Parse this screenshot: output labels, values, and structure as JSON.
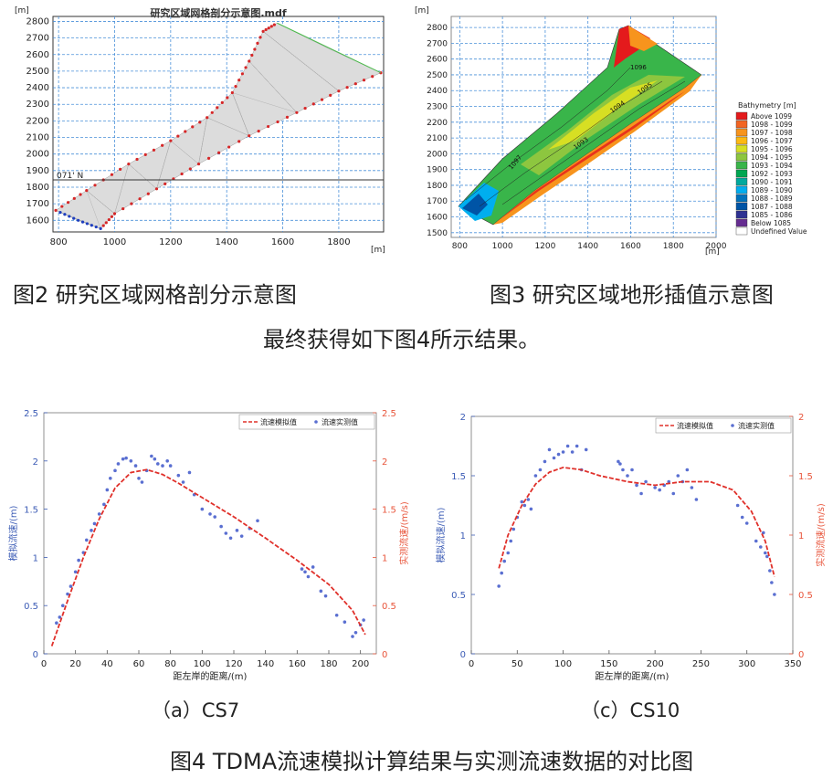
{
  "fig2": {
    "title": "研究区域网格剖分示意图.mdf",
    "x_unit": "[m]",
    "y_unit": "[m]",
    "x_ticks": [
      "800",
      "1000",
      "1200",
      "1400",
      "1600",
      "1800"
    ],
    "y_ticks": [
      "1600",
      "1700",
      "1800",
      "1900",
      "2000",
      "2100",
      "2200",
      "2300",
      "2400",
      "2500",
      "2600",
      "2700",
      "2800"
    ],
    "lat_label": "071' N",
    "caption": "图2 研究区域网格剖分示意图"
  },
  "fig3": {
    "x_unit": "[m]",
    "y_unit": "[m]",
    "x_ticks": [
      "800",
      "1000",
      "1200",
      "1400",
      "1600",
      "1800",
      "2000"
    ],
    "y_ticks": [
      "1500",
      "1600",
      "1700",
      "1800",
      "1900",
      "2000",
      "2100",
      "2200",
      "2300",
      "2400",
      "2500",
      "2600",
      "2700",
      "2800"
    ],
    "legend_title": "Bathymetry [m]",
    "legend": [
      {
        "label": "Above 1099",
        "color": "#e41a1c"
      },
      {
        "label": "1098 - 1099",
        "color": "#f26522"
      },
      {
        "label": "1097 - 1098",
        "color": "#f7941d"
      },
      {
        "label": "1096 - 1097",
        "color": "#fdb913"
      },
      {
        "label": "1095 - 1096",
        "color": "#d7df23"
      },
      {
        "label": "1094 - 1095",
        "color": "#8dc63f"
      },
      {
        "label": "1093 - 1094",
        "color": "#39b54a"
      },
      {
        "label": "1092 - 1093",
        "color": "#00a651"
      },
      {
        "label": "1090 - 1091",
        "color": "#00a99d"
      },
      {
        "label": "1089 - 1090",
        "color": "#00aeef"
      },
      {
        "label": "1088 - 1089",
        "color": "#0072bc"
      },
      {
        "label": "1087 - 1088",
        "color": "#0054a6"
      },
      {
        "label": "1085 - 1086",
        "color": "#2e3192"
      },
      {
        "label": "Below 1085",
        "color": "#662d91"
      },
      {
        "label": "Undefined Value",
        "color": "#ffffff"
      }
    ],
    "contour_labels": [
      "1096",
      "1095",
      "1094",
      "1093",
      "1097"
    ],
    "caption": "图3 研究区域地形插值示意图"
  },
  "mid_text": "最终获得如下图4所示结果。",
  "chart_data": [
    {
      "type": "line",
      "name": "cs7",
      "subcaption": "（a）CS7",
      "xlabel": "距左岸的距离/(m)",
      "ylabel_left": "模拟流速/(m)",
      "ylabel_right": "实测流速/(m/s)",
      "legend": [
        "流速模拟值",
        "流速实测值"
      ],
      "xlim": [
        0,
        210
      ],
      "ylim": [
        0,
        2.5
      ],
      "x_ticks": [
        "0",
        "20",
        "40",
        "60",
        "80",
        "100",
        "120",
        "140",
        "160",
        "180",
        "200"
      ],
      "y_ticks": [
        "0",
        "0.5",
        "1",
        "1.5",
        "2",
        "2.5"
      ],
      "sim_line": {
        "x": [
          5,
          15,
          25,
          35,
          45,
          55,
          65,
          75,
          85,
          100,
          120,
          140,
          160,
          180,
          195,
          203
        ],
        "y": [
          0.08,
          0.55,
          1.0,
          1.4,
          1.72,
          1.88,
          1.91,
          1.86,
          1.77,
          1.62,
          1.42,
          1.2,
          0.97,
          0.72,
          0.45,
          0.2
        ]
      },
      "measured": {
        "x": [
          8,
          10,
          12,
          15,
          17,
          20,
          22,
          25,
          27,
          30,
          32,
          35,
          38,
          40,
          42,
          45,
          47,
          50,
          52,
          55,
          58,
          60,
          62,
          65,
          68,
          70,
          72,
          75,
          78,
          80,
          85,
          88,
          92,
          95,
          100,
          105,
          108,
          112,
          115,
          118,
          122,
          125,
          130,
          135,
          163,
          165,
          167,
          170,
          175,
          178,
          185,
          190,
          195,
          197,
          200,
          202
        ],
        "y": [
          0.32,
          0.38,
          0.5,
          0.62,
          0.7,
          0.85,
          0.97,
          1.05,
          1.18,
          1.28,
          1.35,
          1.45,
          1.55,
          1.7,
          1.82,
          1.9,
          1.97,
          2.02,
          2.03,
          2.0,
          1.95,
          1.82,
          1.78,
          1.9,
          2.05,
          2.02,
          1.97,
          1.95,
          2.0,
          1.95,
          1.85,
          1.78,
          1.88,
          1.65,
          1.5,
          1.45,
          1.42,
          1.32,
          1.25,
          1.2,
          1.28,
          1.22,
          1.3,
          1.38,
          0.88,
          0.85,
          0.8,
          0.9,
          0.65,
          0.6,
          0.4,
          0.33,
          0.18,
          0.22,
          0.3,
          0.35
        ]
      }
    },
    {
      "type": "line",
      "name": "cs10",
      "subcaption": "（c）CS10",
      "xlabel": "距左岸的距离/(m)",
      "ylabel_left": "模拟流速/(m)",
      "ylabel_right": "实测流速/(m/s)",
      "legend": [
        "流速模拟值",
        "流速实测值"
      ],
      "xlim": [
        0,
        350
      ],
      "ylim": [
        0,
        2
      ],
      "x_ticks": [
        "0",
        "50",
        "100",
        "150",
        "200",
        "250",
        "300",
        "350"
      ],
      "y_ticks": [
        "0",
        "0.5",
        "1",
        "1.5",
        "2"
      ],
      "sim_line": {
        "x": [
          30,
          40,
          55,
          70,
          85,
          100,
          120,
          140,
          170,
          200,
          230,
          260,
          285,
          305,
          320,
          330
        ],
        "y": [
          0.72,
          1.0,
          1.25,
          1.43,
          1.53,
          1.57,
          1.55,
          1.5,
          1.45,
          1.42,
          1.45,
          1.45,
          1.38,
          1.2,
          0.95,
          0.65
        ]
      },
      "measured": {
        "x": [
          30,
          33,
          36,
          40,
          43,
          46,
          50,
          55,
          58,
          62,
          65,
          70,
          75,
          80,
          85,
          90,
          95,
          100,
          105,
          110,
          115,
          120,
          125,
          160,
          162,
          165,
          170,
          175,
          180,
          185,
          190,
          200,
          205,
          210,
          215,
          220,
          225,
          230,
          235,
          240,
          245,
          290,
          295,
          300,
          310,
          315,
          318,
          320,
          322,
          325,
          327,
          330
        ],
        "y": [
          0.57,
          0.68,
          0.78,
          0.85,
          0.95,
          1.05,
          1.15,
          1.28,
          1.25,
          1.3,
          1.22,
          1.5,
          1.55,
          1.62,
          1.72,
          1.65,
          1.68,
          1.7,
          1.75,
          1.7,
          1.75,
          1.55,
          1.72,
          1.62,
          1.6,
          1.55,
          1.5,
          1.55,
          1.42,
          1.35,
          1.45,
          1.4,
          1.38,
          1.42,
          1.45,
          1.35,
          1.5,
          1.45,
          1.55,
          1.4,
          1.3,
          1.25,
          1.15,
          1.1,
          0.95,
          0.9,
          1.02,
          0.85,
          0.82,
          0.7,
          0.6,
          0.5
        ]
      }
    }
  ],
  "fig4_caption": "图4 TDMA流速模拟计算结果与实测流速数据的对比图"
}
